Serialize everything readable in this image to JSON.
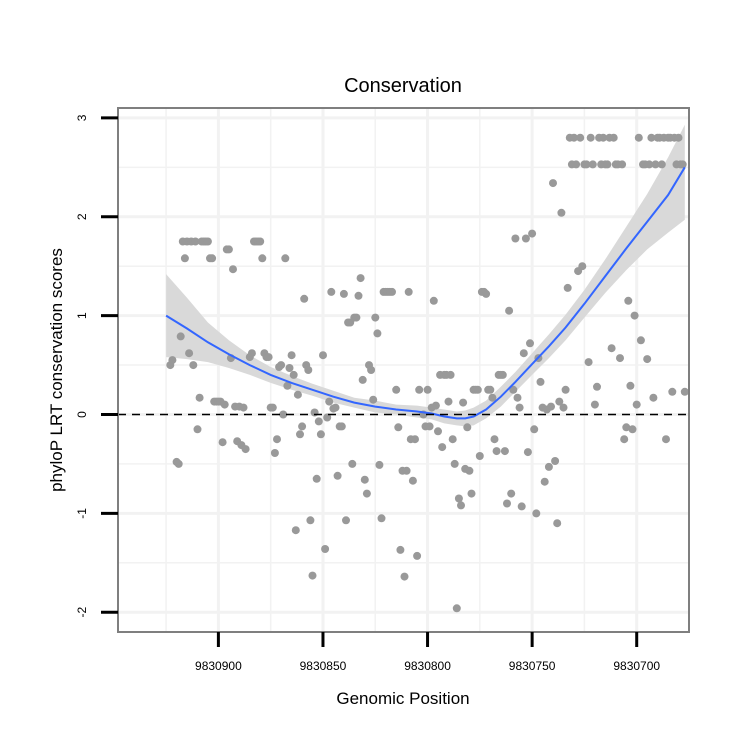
{
  "chart_data": {
    "type": "scatter",
    "title": "Conservation",
    "xlabel": "Genomic Position",
    "ylabel": "phyloP LRT conservation scores",
    "x_reversed": true,
    "xlim": [
      9830675,
      9830948
    ],
    "ylim": [
      -2.2,
      3.1
    ],
    "x_ticks": [
      9830900,
      9830850,
      9830800,
      9830750,
      9830700
    ],
    "x_tick_labels": [
      "9830900",
      "9830850",
      "9830800",
      "9830750",
      "9830700"
    ],
    "y_ticks": [
      -2,
      -1,
      0,
      1,
      2,
      3
    ],
    "y_tick_labels": [
      "-2",
      "-1",
      "0",
      "1",
      "2",
      "3"
    ],
    "reference_line": {
      "y": 0,
      "style": "dashed",
      "color": "#000000"
    },
    "colors": {
      "points": "#999999",
      "smooth": "#3366ff",
      "ribbon": "#d9d9d9",
      "panel_border": "#7f7f7f",
      "grid": "#f2f2f2"
    },
    "series": [
      {
        "name": "phyloP scores",
        "kind": "points",
        "points": [
          [
            9830923,
            0.5
          ],
          [
            9830922,
            0.55
          ],
          [
            9830920,
            -0.48
          ],
          [
            9830919,
            -0.5
          ],
          [
            9830918,
            0.79
          ],
          [
            9830917,
            1.75
          ],
          [
            9830916,
            1.58
          ],
          [
            9830915,
            1.75
          ],
          [
            9830914,
            0.62
          ],
          [
            9830913,
            1.75
          ],
          [
            9830912,
            0.5
          ],
          [
            9830911,
            1.75
          ],
          [
            9830910,
            -0.15
          ],
          [
            9830909,
            0.17
          ],
          [
            9830908,
            1.75
          ],
          [
            9830907,
            1.75
          ],
          [
            9830906,
            1.75
          ],
          [
            9830905,
            1.75
          ],
          [
            9830904,
            1.58
          ],
          [
            9830903,
            1.58
          ],
          [
            9830902,
            0.13
          ],
          [
            9830901,
            0.13
          ],
          [
            9830900,
            0.13
          ],
          [
            9830899,
            0.13
          ],
          [
            9830898,
            -0.28
          ],
          [
            9830897,
            0.1
          ],
          [
            9830896,
            1.67
          ],
          [
            9830895,
            1.67
          ],
          [
            9830894,
            0.57
          ],
          [
            9830893,
            1.47
          ],
          [
            9830892,
            0.08
          ],
          [
            9830891,
            -0.27
          ],
          [
            9830890,
            0.08
          ],
          [
            9830889,
            -0.31
          ],
          [
            9830888,
            0.07
          ],
          [
            9830887,
            -0.35
          ],
          [
            9830885,
            0.58
          ],
          [
            9830884,
            0.62
          ],
          [
            9830883,
            1.75
          ],
          [
            9830882,
            1.75
          ],
          [
            9830881,
            1.75
          ],
          [
            9830880,
            1.75
          ],
          [
            9830879,
            1.58
          ],
          [
            9830878,
            0.62
          ],
          [
            9830877,
            0.58
          ],
          [
            9830876,
            0.58
          ],
          [
            9830875,
            0.07
          ],
          [
            9830874,
            0.07
          ],
          [
            9830873,
            -0.39
          ],
          [
            9830872,
            -0.25
          ],
          [
            9830871,
            0.48
          ],
          [
            9830870,
            0.5
          ],
          [
            9830869,
            0.0
          ],
          [
            9830868,
            1.58
          ],
          [
            9830867,
            0.29
          ],
          [
            9830866,
            0.47
          ],
          [
            9830865,
            0.6
          ],
          [
            9830864,
            0.4
          ],
          [
            9830863,
            -1.17
          ],
          [
            9830862,
            0.2
          ],
          [
            9830861,
            -0.2
          ],
          [
            9830860,
            -0.12
          ],
          [
            9830859,
            1.17
          ],
          [
            9830858,
            0.5
          ],
          [
            9830857,
            0.45
          ],
          [
            9830856,
            -1.07
          ],
          [
            9830855,
            -1.63
          ],
          [
            9830854,
            0.02
          ],
          [
            9830853,
            -0.65
          ],
          [
            9830852,
            -0.07
          ],
          [
            9830851,
            -0.2
          ],
          [
            9830850,
            0.6
          ],
          [
            9830849,
            -1.36
          ],
          [
            9830848,
            -0.03
          ],
          [
            9830847,
            0.13
          ],
          [
            9830846,
            1.24
          ],
          [
            9830845,
            0.06
          ],
          [
            9830844,
            0.07
          ],
          [
            9830843,
            -0.62
          ],
          [
            9830842,
            -0.12
          ],
          [
            9830841,
            -0.12
          ],
          [
            9830840,
            1.22
          ],
          [
            9830839,
            -1.07
          ],
          [
            9830838,
            0.93
          ],
          [
            9830837,
            0.93
          ],
          [
            9830836,
            -0.5
          ],
          [
            9830835,
            0.98
          ],
          [
            9830834,
            0.98
          ],
          [
            9830833,
            1.2
          ],
          [
            9830832,
            1.38
          ],
          [
            9830831,
            0.35
          ],
          [
            9830830,
            -0.66
          ],
          [
            9830829,
            -0.8
          ],
          [
            9830828,
            0.5
          ],
          [
            9830827,
            0.45
          ],
          [
            9830826,
            0.15
          ],
          [
            9830825,
            0.98
          ],
          [
            9830824,
            0.82
          ],
          [
            9830823,
            -0.51
          ],
          [
            9830822,
            -1.05
          ],
          [
            9830821,
            1.24
          ],
          [
            9830820,
            1.24
          ],
          [
            9830819,
            1.24
          ],
          [
            9830818,
            1.24
          ],
          [
            9830817,
            1.24
          ],
          [
            9830815,
            0.25
          ],
          [
            9830814,
            -0.13
          ],
          [
            9830813,
            -1.37
          ],
          [
            9830812,
            -0.57
          ],
          [
            9830811,
            -1.64
          ],
          [
            9830810,
            -0.57
          ],
          [
            9830809,
            1.24
          ],
          [
            9830808,
            -0.25
          ],
          [
            9830807,
            -0.67
          ],
          [
            9830806,
            -0.25
          ],
          [
            9830805,
            -1.43
          ],
          [
            9830804,
            0.25
          ],
          [
            9830802,
            0.0
          ],
          [
            9830801,
            -0.12
          ],
          [
            9830800,
            0.25
          ],
          [
            9830799,
            -0.12
          ],
          [
            9830798,
            0.07
          ],
          [
            9830797,
            1.15
          ],
          [
            9830796,
            0.09
          ],
          [
            9830795,
            -0.17
          ],
          [
            9830794,
            0.4
          ],
          [
            9830793,
            -0.33
          ],
          [
            9830792,
            0.4
          ],
          [
            9830791,
            0.4
          ],
          [
            9830790,
            0.13
          ],
          [
            9830789,
            0.4
          ],
          [
            9830788,
            -0.25
          ],
          [
            9830787,
            -0.5
          ],
          [
            9830786,
            -1.96
          ],
          [
            9830785,
            -0.85
          ],
          [
            9830784,
            -0.92
          ],
          [
            9830783,
            0.12
          ],
          [
            9830782,
            -0.55
          ],
          [
            9830781,
            -0.13
          ],
          [
            9830780,
            -0.57
          ],
          [
            9830779,
            -0.8
          ],
          [
            9830778,
            0.25
          ],
          [
            9830777,
            0.25
          ],
          [
            9830776,
            0.25
          ],
          [
            9830775,
            -0.42
          ],
          [
            9830774,
            1.24
          ],
          [
            9830773,
            1.24
          ],
          [
            9830772,
            1.22
          ],
          [
            9830771,
            0.25
          ],
          [
            9830770,
            0.25
          ],
          [
            9830769,
            0.17
          ],
          [
            9830768,
            -0.25
          ],
          [
            9830767,
            -0.37
          ],
          [
            9830766,
            0.4
          ],
          [
            9830765,
            0.4
          ],
          [
            9830764,
            0.4
          ],
          [
            9830763,
            -0.37
          ],
          [
            9830762,
            -0.9
          ],
          [
            9830761,
            1.05
          ],
          [
            9830760,
            -0.8
          ],
          [
            9830759,
            0.25
          ],
          [
            9830758,
            1.78
          ],
          [
            9830757,
            0.17
          ],
          [
            9830756,
            0.07
          ],
          [
            9830755,
            -0.93
          ],
          [
            9830754,
            0.62
          ],
          [
            9830753,
            1.78
          ],
          [
            9830752,
            -0.38
          ],
          [
            9830751,
            0.72
          ],
          [
            9830750,
            1.83
          ],
          [
            9830749,
            -0.15
          ],
          [
            9830748,
            -1.0
          ],
          [
            9830747,
            0.57
          ],
          [
            9830746,
            0.33
          ],
          [
            9830745,
            0.07
          ],
          [
            9830744,
            -0.68
          ],
          [
            9830743,
            0.05
          ],
          [
            9830742,
            -0.53
          ],
          [
            9830741,
            0.08
          ],
          [
            9830740,
            2.34
          ],
          [
            9830739,
            -0.47
          ],
          [
            9830738,
            -1.1
          ],
          [
            9830737,
            0.13
          ],
          [
            9830736,
            2.04
          ],
          [
            9830735,
            0.07
          ],
          [
            9830734,
            0.25
          ],
          [
            9830733,
            1.28
          ],
          [
            9830732,
            2.8
          ],
          [
            9830731,
            2.53
          ],
          [
            9830730,
            2.8
          ],
          [
            9830729,
            2.53
          ],
          [
            9830728,
            1.45
          ],
          [
            9830727,
            2.8
          ],
          [
            9830726,
            1.5
          ],
          [
            9830725,
            2.53
          ],
          [
            9830724,
            2.53
          ],
          [
            9830723,
            0.53
          ],
          [
            9830722,
            2.8
          ],
          [
            9830721,
            2.53
          ],
          [
            9830720,
            0.1
          ],
          [
            9830719,
            0.28
          ],
          [
            9830718,
            2.8
          ],
          [
            9830717,
            2.53
          ],
          [
            9830716,
            2.8
          ],
          [
            9830715,
            2.53
          ],
          [
            9830714,
            2.53
          ],
          [
            9830713,
            2.8
          ],
          [
            9830712,
            0.67
          ],
          [
            9830711,
            2.8
          ],
          [
            9830710,
            2.53
          ],
          [
            9830709,
            2.53
          ],
          [
            9830708,
            0.57
          ],
          [
            9830707,
            2.53
          ],
          [
            9830706,
            -0.25
          ],
          [
            9830705,
            -0.13
          ],
          [
            9830704,
            1.15
          ],
          [
            9830703,
            0.29
          ],
          [
            9830702,
            -0.15
          ],
          [
            9830701,
            1.0
          ],
          [
            9830700,
            0.1
          ],
          [
            9830699,
            2.8
          ],
          [
            9830698,
            0.75
          ],
          [
            9830697,
            2.53
          ],
          [
            9830696,
            2.53
          ],
          [
            9830695,
            0.56
          ],
          [
            9830694,
            2.53
          ],
          [
            9830693,
            2.8
          ],
          [
            9830692,
            0.17
          ],
          [
            9830691,
            2.53
          ],
          [
            9830690,
            2.8
          ],
          [
            9830689,
            2.8
          ],
          [
            9830688,
            2.53
          ],
          [
            9830687,
            2.8
          ],
          [
            9830686,
            -0.25
          ],
          [
            9830685,
            2.8
          ],
          [
            9830684,
            2.8
          ],
          [
            9830683,
            0.23
          ],
          [
            9830682,
            2.8
          ],
          [
            9830681,
            2.53
          ],
          [
            9830680,
            2.8
          ],
          [
            9830679,
            2.53
          ],
          [
            9830678,
            2.53
          ],
          [
            9830677,
            0.23
          ]
        ]
      },
      {
        "name": "loess fit",
        "kind": "smooth",
        "points": [
          [
            9830925,
            1.0
          ],
          [
            9830915,
            0.87
          ],
          [
            9830905,
            0.73
          ],
          [
            9830895,
            0.61
          ],
          [
            9830885,
            0.5
          ],
          [
            9830875,
            0.4
          ],
          [
            9830865,
            0.32
          ],
          [
            9830855,
            0.25
          ],
          [
            9830845,
            0.18
          ],
          [
            9830835,
            0.12
          ],
          [
            9830825,
            0.08
          ],
          [
            9830815,
            0.05
          ],
          [
            9830805,
            0.03
          ],
          [
            9830798,
            0.01
          ],
          [
            9830792,
            -0.02
          ],
          [
            9830786,
            -0.04
          ],
          [
            9830782,
            -0.04
          ],
          [
            9830778,
            -0.02
          ],
          [
            9830772,
            0.05
          ],
          [
            9830765,
            0.18
          ],
          [
            9830758,
            0.33
          ],
          [
            9830750,
            0.51
          ],
          [
            9830742,
            0.69
          ],
          [
            9830734,
            0.88
          ],
          [
            9830725,
            1.12
          ],
          [
            9830715,
            1.4
          ],
          [
            9830705,
            1.68
          ],
          [
            9830695,
            1.95
          ],
          [
            9830685,
            2.22
          ],
          [
            9830677,
            2.5
          ]
        ],
        "ci_lower": [
          0.58,
          0.56,
          0.53,
          0.47,
          0.4,
          0.32,
          0.25,
          0.19,
          0.12,
          0.07,
          0.02,
          0.0,
          -0.03,
          -0.05,
          -0.09,
          -0.11,
          -0.12,
          -0.11,
          -0.04,
          0.08,
          0.23,
          0.4,
          0.57,
          0.75,
          0.98,
          1.23,
          1.46,
          1.67,
          1.84,
          1.97
        ],
        "ci_upper": [
          1.42,
          1.18,
          0.93,
          0.75,
          0.6,
          0.48,
          0.39,
          0.31,
          0.24,
          0.17,
          0.14,
          0.1,
          0.09,
          0.07,
          0.05,
          0.03,
          0.04,
          0.07,
          0.14,
          0.28,
          0.43,
          0.62,
          0.81,
          1.01,
          1.26,
          1.57,
          1.9,
          2.23,
          2.6,
          2.93
        ]
      }
    ]
  }
}
